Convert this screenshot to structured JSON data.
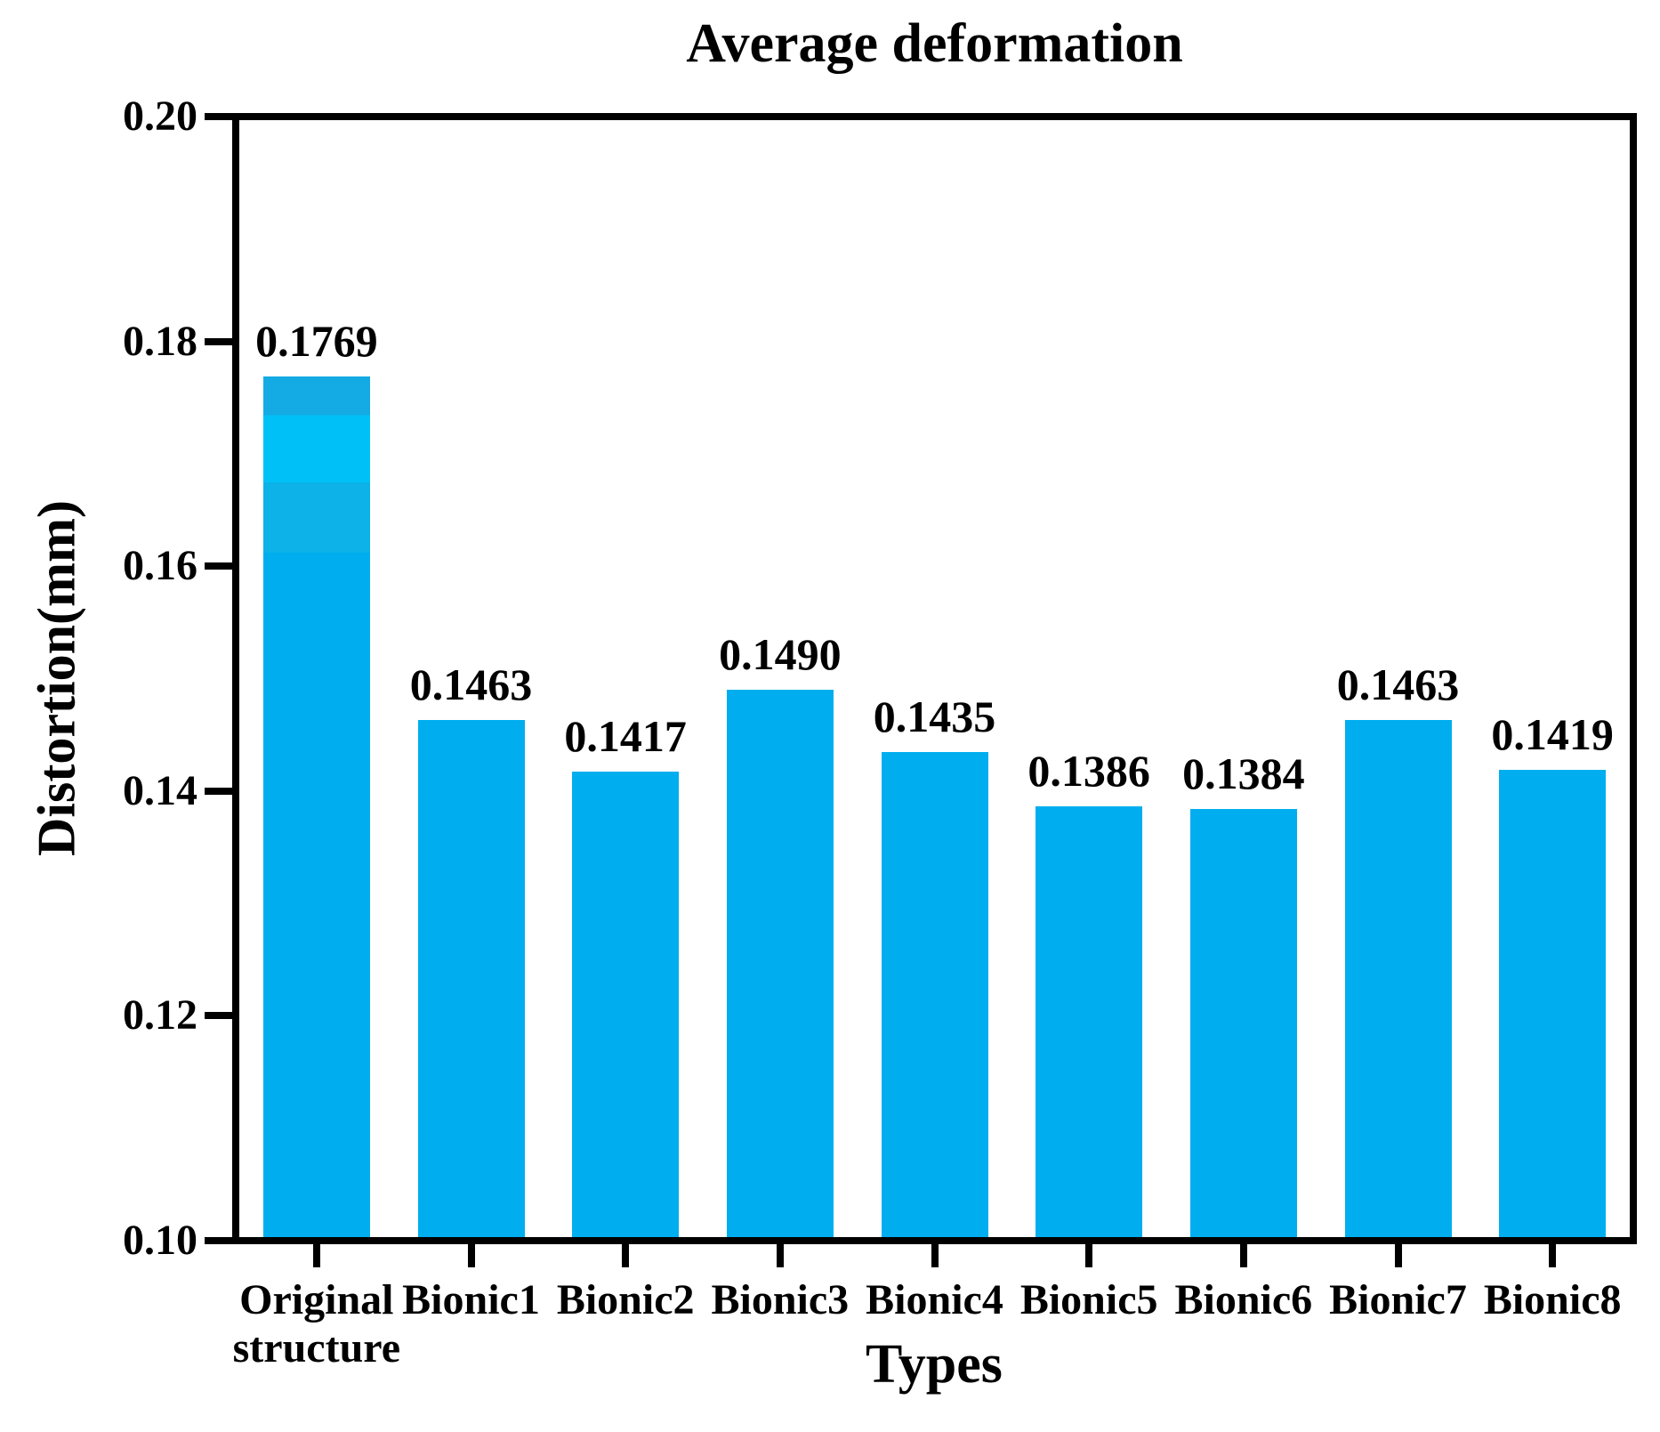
{
  "chart_data": {
    "type": "bar",
    "title": "Average deformation",
    "xlabel": "Types",
    "ylabel": "Distortion(mm)",
    "categories": [
      "Original structure",
      "Bionic1",
      "Bionic2",
      "Bionic3",
      "Bionic4",
      "Bionic5",
      "Bionic6",
      "Bionic7",
      "Bionic8"
    ],
    "values": [
      0.1769,
      0.1463,
      0.1417,
      0.149,
      0.1435,
      0.1386,
      0.1384,
      0.1463,
      0.1419
    ],
    "value_labels": [
      "0.1769",
      "0.1463",
      "0.1417",
      "0.1490",
      "0.1435",
      "0.1386",
      "0.1384",
      "0.1463",
      "0.1419"
    ],
    "ylim": [
      0.1,
      0.2
    ],
    "ytick_labels": [
      "0.20",
      "0.18",
      "0.16",
      "0.14",
      "0.12",
      "0.10"
    ],
    "grid": false,
    "legend_position": "none",
    "colors": {
      "bar_fill": "#00AEEF",
      "first_bar_bands": [
        "#14ABE4",
        "#00C1F7",
        "#0DB2E8",
        "#00AEEF"
      ],
      "axis": "#000000",
      "text": "#000000",
      "background": "#FFFFFF"
    }
  }
}
